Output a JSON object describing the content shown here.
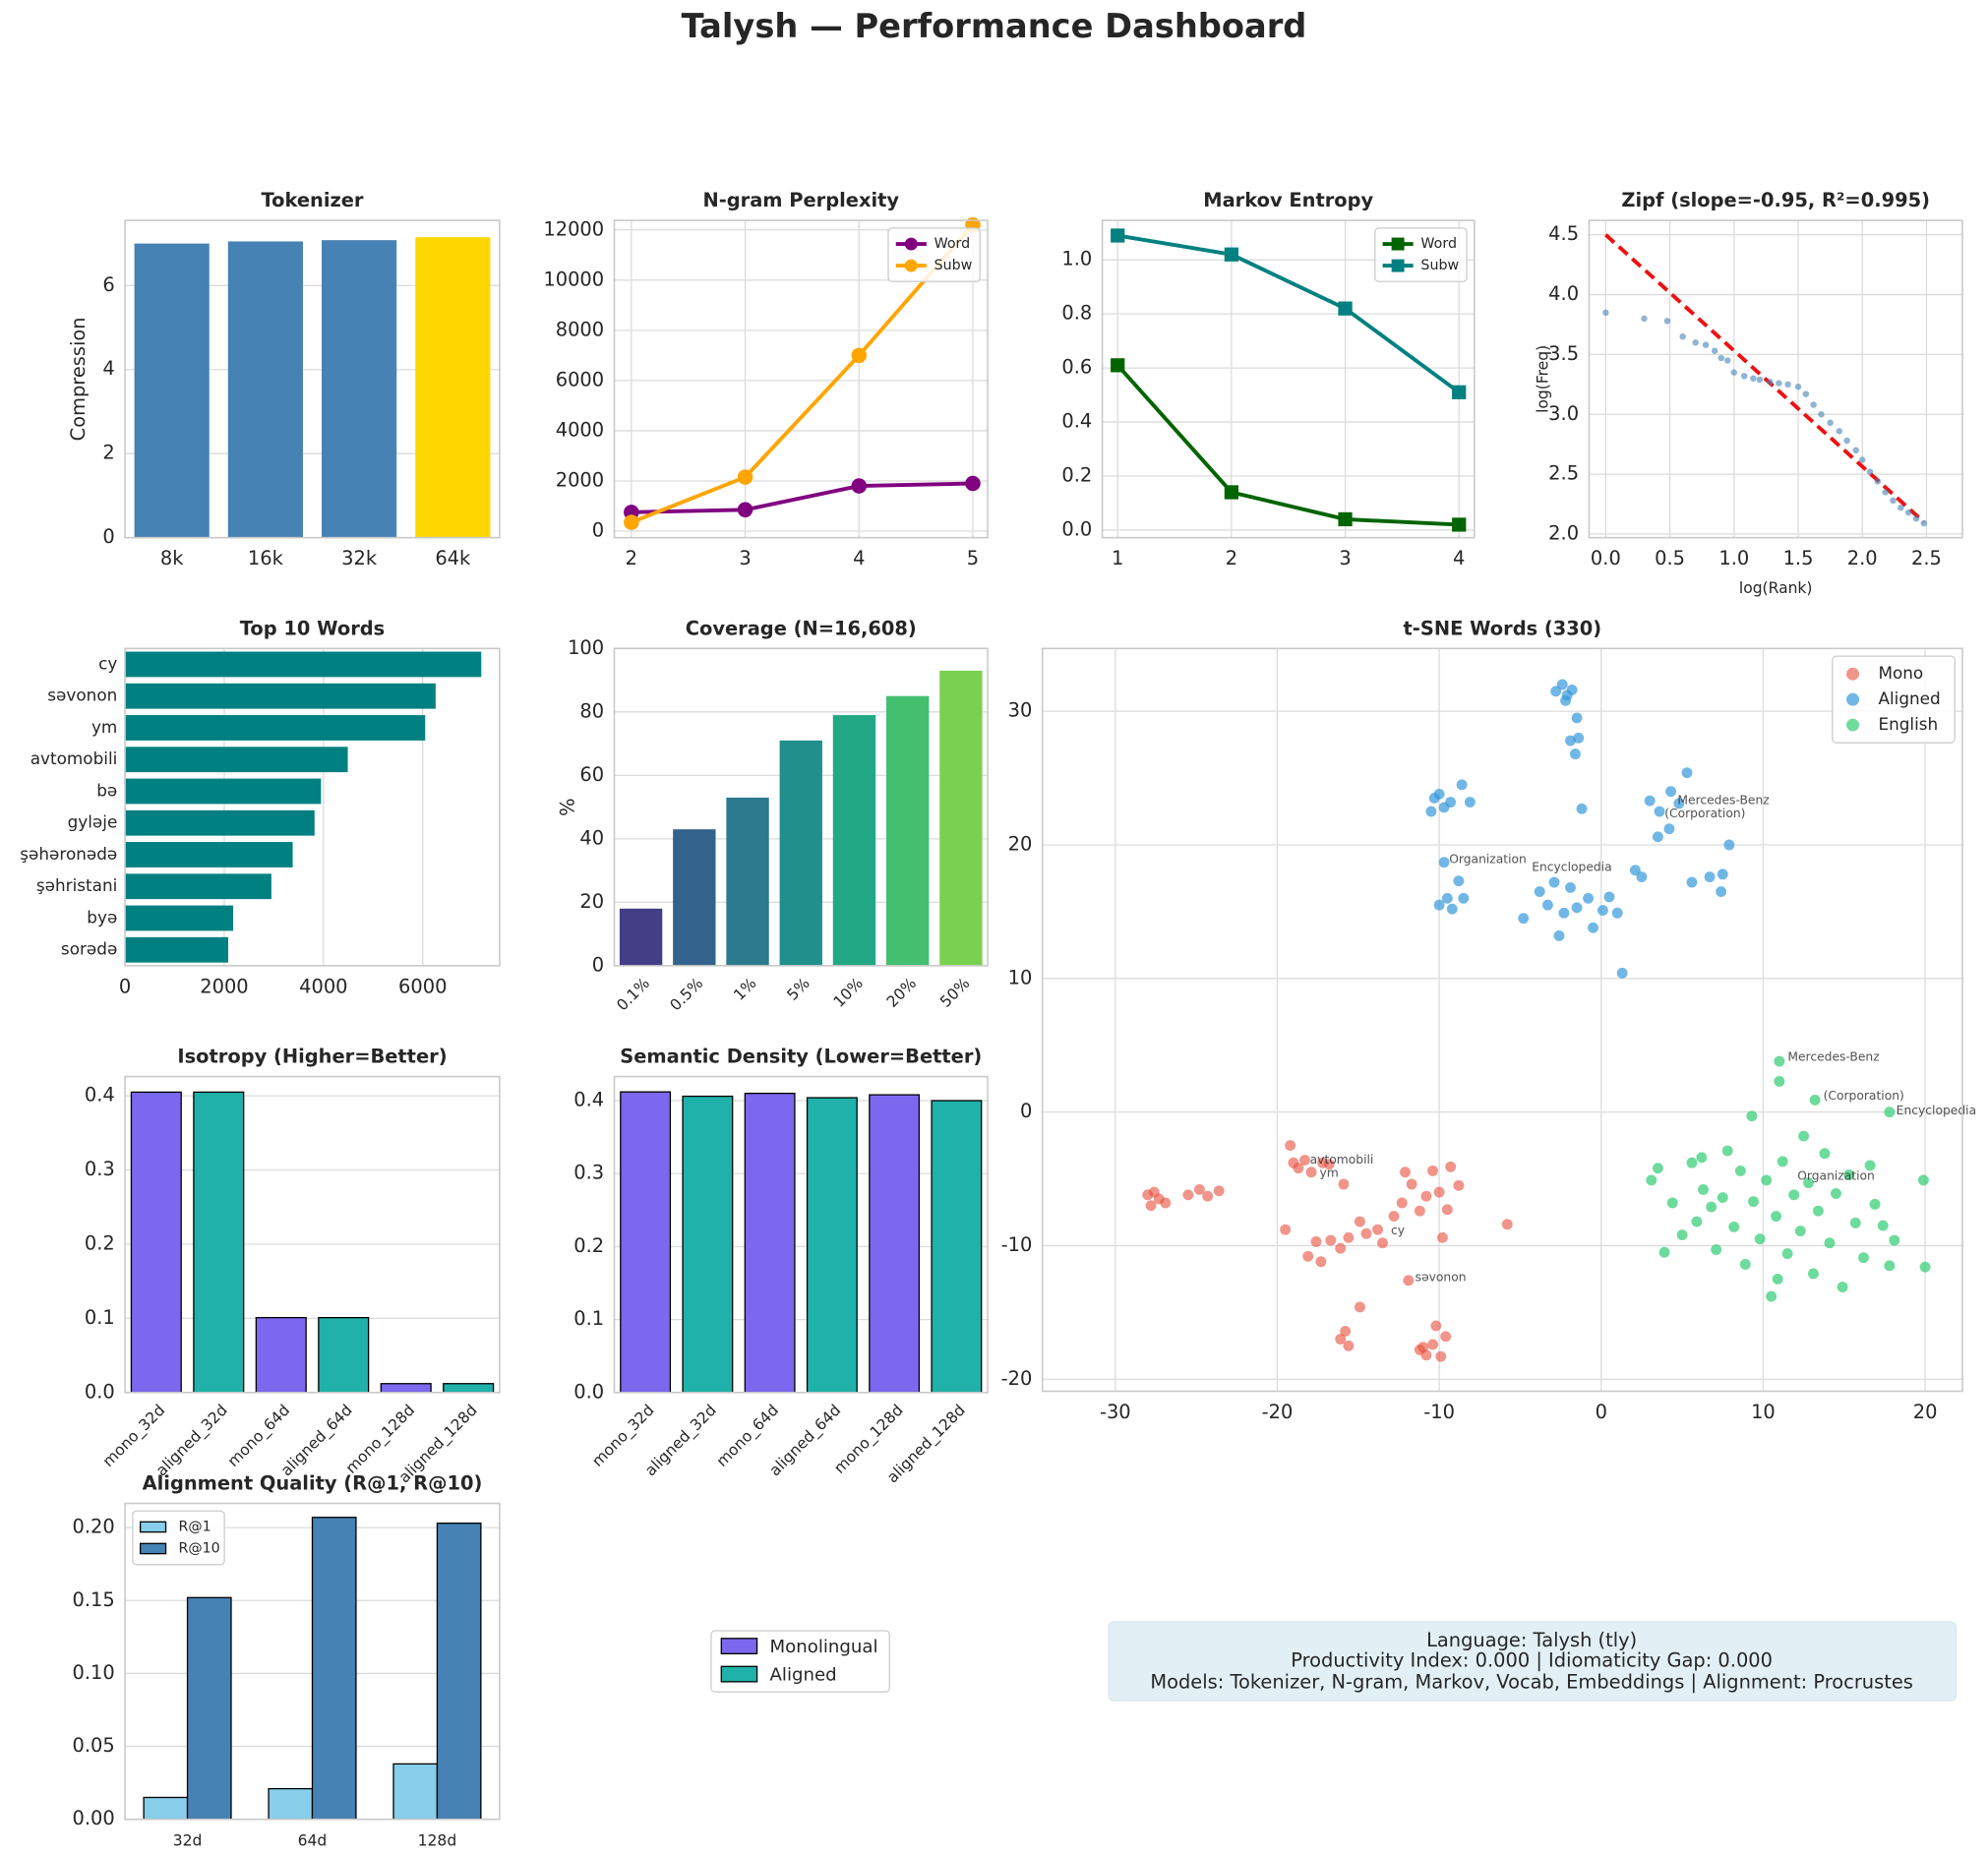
{
  "title": "Talysh — Performance Dashboard",
  "chart_data": [
    {
      "type": "bar",
      "title": "Tokenizer",
      "ylabel": "Compression",
      "categories": [
        "8k",
        "16k",
        "32k",
        "64k"
      ],
      "values": [
        7.0,
        7.05,
        7.08,
        7.15
      ],
      "colors": [
        "#4682b4",
        "#4682b4",
        "#4682b4",
        "#ffd700"
      ],
      "ylim": [
        0,
        7.55
      ],
      "yticks": [
        0,
        2,
        4,
        6
      ],
      "grid": true
    },
    {
      "type": "line",
      "title": "N-gram Perplexity",
      "x": [
        2,
        3,
        4,
        5
      ],
      "series": [
        {
          "name": "Word",
          "color": "#800080",
          "marker": "o",
          "values": [
            750,
            850,
            1800,
            1900
          ]
        },
        {
          "name": "Subw",
          "color": "#ffa500",
          "marker": "o",
          "values": [
            350,
            2150,
            7000,
            12200
          ]
        }
      ],
      "xlim": [
        1.85,
        5.13
      ],
      "xticks": [
        2,
        3,
        4,
        5
      ],
      "ylim": [
        -260,
        12380
      ],
      "yticks": [
        0,
        2000,
        4000,
        6000,
        8000,
        10000,
        12000
      ],
      "legend": "upper right",
      "grid": true
    },
    {
      "type": "line",
      "title": "Markov Entropy",
      "x": [
        1,
        2,
        3,
        4
      ],
      "series": [
        {
          "name": "Word",
          "color": "#006400",
          "marker": "s",
          "values": [
            0.61,
            0.14,
            0.04,
            0.02
          ]
        },
        {
          "name": "Subw",
          "color": "#008080",
          "marker": "s",
          "values": [
            1.09,
            1.02,
            0.82,
            0.51
          ]
        }
      ],
      "xlim": [
        0.865,
        4.135
      ],
      "xticks": [
        1,
        2,
        3,
        4
      ],
      "ylim": [
        -0.028,
        1.146
      ],
      "yticks": [
        {
          "value": 0,
          "label": "0.0"
        },
        0.2,
        0.4,
        0.6,
        0.8,
        {
          "value": 1,
          "label": "1.0"
        }
      ],
      "legend": "upper right",
      "grid": true
    },
    {
      "type": "scatter",
      "title": "Zipf (slope=-0.95, R²=0.995)",
      "xlabel": "log(Rank)",
      "ylabel": "log(Freq)",
      "series": [
        {
          "color": "#4682b4",
          "alpha": 0.6,
          "x": [
            0,
            0.3,
            0.48,
            0.6,
            0.7,
            0.78,
            0.85,
            0.9,
            0.95,
            1.0,
            1.08,
            1.15,
            1.2,
            1.28,
            1.35,
            1.42,
            1.5,
            1.56,
            1.62,
            1.68,
            1.75,
            1.82,
            1.88,
            1.95,
            2.0,
            2.06,
            2.12,
            2.18,
            2.24,
            2.3,
            2.36,
            2.42,
            2.48
          ],
          "y": [
            3.85,
            3.8,
            3.78,
            3.65,
            3.6,
            3.58,
            3.53,
            3.47,
            3.45,
            3.35,
            3.32,
            3.3,
            3.29,
            3.27,
            3.26,
            3.25,
            3.23,
            3.17,
            3.08,
            3.0,
            2.93,
            2.86,
            2.78,
            2.7,
            2.62,
            2.52,
            2.44,
            2.35,
            2.28,
            2.22,
            2.18,
            2.13,
            2.09
          ]
        }
      ],
      "fit_line": {
        "x": [
          0,
          2.48
        ],
        "y": [
          4.5,
          2.1
        ],
        "color": "#ee1111"
      },
      "xlim": [
        -0.13,
        2.78
      ],
      "xticks": [
        {
          "value": 0,
          "label": "0.0"
        },
        0.5,
        {
          "value": 1,
          "label": "1.0"
        },
        1.5,
        {
          "value": 2,
          "label": "2.0"
        },
        2.5
      ],
      "ylim": [
        1.97,
        4.62
      ],
      "yticks": [
        {
          "value": 2,
          "label": "2.0"
        },
        2.5,
        {
          "value": 3,
          "label": "3.0"
        },
        3.5,
        {
          "value": 4,
          "label": "4.0"
        },
        4.5
      ],
      "grid": true
    },
    {
      "type": "barh",
      "title": "Top 10 Words",
      "categories": [
        "cy",
        "səvonon",
        "ym",
        "avtomobili",
        "bə",
        "gyləje",
        "şəhəronədə",
        "şəhristani",
        "byə",
        "sorədə"
      ],
      "values": [
        7180,
        6260,
        6050,
        4490,
        3950,
        3820,
        3380,
        2950,
        2180,
        2080
      ],
      "color": "#008080",
      "xlim": [
        0,
        7550
      ],
      "xticks": [
        0,
        2000,
        4000,
        6000
      ],
      "grid": true
    },
    {
      "type": "bar",
      "title": "Coverage (N=16,608)",
      "ylabel": "%",
      "categories": [
        "0.1%",
        "0.5%",
        "1%",
        "5%",
        "10%",
        "20%",
        "50%"
      ],
      "values": [
        18,
        43,
        53,
        71,
        79,
        85,
        93
      ],
      "colors": [
        "#433e85",
        "#33638d",
        "#2c7a8e",
        "#21908d",
        "#22a884",
        "#44bf70",
        "#7ad151"
      ],
      "ylim": [
        0,
        100
      ],
      "yticks": [
        0,
        20,
        40,
        60,
        80,
        100
      ],
      "xtick_rotation": 45,
      "grid": true
    },
    {
      "type": "scatter",
      "title": "t-SNE Words (330)",
      "series": [
        {
          "name": "Mono",
          "color": "#e74c3c",
          "alpha": 0.6,
          "x": [
            -28,
            -27.8,
            -27.3,
            -26.9,
            -27.6,
            -25.5,
            -24.8,
            -24.3,
            -23.6,
            -19.2,
            -19,
            -18.7,
            -18.3,
            -17.9,
            -17.2,
            -16.8,
            -15.9,
            -19.5,
            -18.1,
            -17.6,
            -17.3,
            -16.7,
            -16.1,
            -15.6,
            -14.9,
            -14.5,
            -13.8,
            -13.5,
            -12.8,
            -12.3,
            -12.1,
            -11.7,
            -11.2,
            -10.8,
            -10.4,
            -10,
            -9.8,
            -9.5,
            -9.3,
            -8.8,
            -5.8,
            -11.9,
            -14.9,
            -16.1,
            -15.6,
            -15.8,
            -11.2,
            -10.8,
            -10.4,
            -9.9,
            -9.6,
            -10.2,
            -11
          ],
          "y": [
            -6.2,
            -7,
            -6.5,
            -6.8,
            -6,
            -6.2,
            -5.8,
            -6.3,
            -5.9,
            -2.5,
            -3.8,
            -4.2,
            -3.6,
            -4.5,
            -3.8,
            -3.9,
            -5.4,
            -8.8,
            -10.8,
            -9.7,
            -11.2,
            -9.6,
            -10.2,
            -9.4,
            -8.2,
            -9.1,
            -8.8,
            -9.8,
            -7.8,
            -6.8,
            -4.5,
            -5.4,
            -7.4,
            -6.3,
            -4.4,
            -6,
            -9.4,
            -7.3,
            -4.1,
            -5.5,
            -8.4,
            -12.6,
            -14.6,
            -17,
            -17.5,
            -16.4,
            -17.8,
            -18.2,
            -17.4,
            -18.3,
            -16.8,
            -16,
            -17.6
          ]
        },
        {
          "name": "Aligned",
          "color": "#3498db",
          "alpha": 0.7,
          "x": [
            -2.8,
            -2.4,
            -2.1,
            -1.8,
            -2.2,
            -1.5,
            -1.9,
            -1.4,
            -1.6,
            -10.3,
            -10,
            -9.7,
            -9.3,
            -8.6,
            -8.1,
            -10.5,
            -10,
            -9.5,
            -9.2,
            -9.7,
            -8.8,
            -8.5,
            -4.8,
            -3.8,
            -3.3,
            -2.9,
            -2.6,
            -2.3,
            -1.9,
            -1.5,
            -0.8,
            -0.5,
            0.1,
            0.5,
            1,
            1.3,
            2.1,
            -1.2,
            3,
            3.6,
            4.3,
            4.8,
            5.3,
            3.5,
            4.2,
            5.6,
            6.7,
            7.4,
            7.9,
            7.5,
            2.5
          ],
          "y": [
            31.5,
            32,
            31.2,
            31.6,
            30.8,
            29.5,
            27.8,
            28,
            26.8,
            23.5,
            23.8,
            22.8,
            23.2,
            24.5,
            23.2,
            22.5,
            15.5,
            16,
            15.2,
            18.7,
            17.3,
            16,
            14.5,
            16.5,
            15.5,
            17.2,
            13.2,
            14.9,
            16.8,
            15.3,
            16,
            13.8,
            15.1,
            16.1,
            14.9,
            10.4,
            18.1,
            22.7,
            23.3,
            22.5,
            24,
            23.1,
            25.4,
            20.6,
            21.2,
            17.2,
            17.6,
            16.5,
            20,
            17.8,
            17.6
          ]
        },
        {
          "name": "English",
          "color": "#2ecc71",
          "alpha": 0.7,
          "x": [
            11,
            11,
            13.2,
            17.8,
            3.1,
            3.5,
            4.4,
            5,
            5.6,
            5.9,
            6.3,
            6.8,
            7.1,
            7.5,
            7.8,
            8.2,
            8.6,
            8.9,
            9.3,
            9.4,
            9.8,
            10.2,
            10.5,
            10.8,
            11.2,
            11.5,
            11.9,
            12.3,
            12.5,
            12.8,
            13.1,
            13.4,
            13.8,
            14.1,
            14.5,
            14.9,
            15.3,
            15.7,
            16.2,
            16.6,
            16.9,
            17.4,
            17.8,
            18.1,
            19.9,
            20,
            6.2,
            10.9,
            3.9
          ],
          "y": [
            3.8,
            2.3,
            0.9,
            0,
            -5.1,
            -4.2,
            -6.8,
            -9.2,
            -3.8,
            -8.2,
            -5.8,
            -7.1,
            -10.3,
            -6.4,
            -2.9,
            -8.6,
            -4.4,
            -11.4,
            -0.3,
            -6.7,
            -9.5,
            -5.1,
            -13.8,
            -7.8,
            -3.7,
            -10.6,
            -6.2,
            -8.9,
            -1.8,
            -5.3,
            -12.1,
            -7.4,
            -3.1,
            -9.8,
            -6.1,
            -13.1,
            -4.7,
            -8.3,
            -10.9,
            -4,
            -6.9,
            -8.5,
            -11.5,
            -9.6,
            -5.1,
            -11.6,
            -3.4,
            -12.5,
            -10.5
          ]
        }
      ],
      "annotations": [
        {
          "text": "Mercedes-Benz",
          "x": 11.2,
          "y": 4.1,
          "color": "#2ecc71"
        },
        {
          "text": "(Corporation)",
          "x": 13.4,
          "y": 1.2,
          "color": "#2ecc71"
        },
        {
          "text": "Encyclopedia",
          "x": 17.9,
          "y": 0.1,
          "color": "#2ecc71"
        },
        {
          "text": "Organization",
          "x": 11.8,
          "y": -4.8,
          "color": "#2ecc71"
        },
        {
          "text": "Mercedes-Benz",
          "x": 4.4,
          "y": 23.3,
          "color": "#3498db"
        },
        {
          "text": "(Corporation)",
          "x": 3.6,
          "y": 22.3,
          "color": "#3498db"
        },
        {
          "text": "Organization",
          "x": -9.7,
          "y": 18.9,
          "color": "#3498db"
        },
        {
          "text": "Encyclopedia",
          "x": -4.6,
          "y": 18.3,
          "color": "#3498db"
        },
        {
          "text": "avtomobili",
          "x": -18.3,
          "y": -3.6,
          "color": "#e74c3c"
        },
        {
          "text": "ym",
          "x": -17.7,
          "y": -4.6,
          "color": "#e74c3c"
        },
        {
          "text": "cy",
          "x": -13.3,
          "y": -8.9,
          "color": "#e74c3c"
        },
        {
          "text": "səvonon",
          "x": -11.8,
          "y": -12.4,
          "color": "#e74c3c"
        }
      ],
      "xlim": [
        -34.5,
        22.3
      ],
      "xticks": [
        -30,
        -20,
        -10,
        0,
        10,
        20
      ],
      "ylim": [
        -20.9,
        34.7
      ],
      "yticks": [
        -20,
        -10,
        0,
        10,
        20,
        30
      ],
      "legend": "upper right",
      "grid": true
    },
    {
      "type": "bar",
      "title": "Isotropy (Higher=Better)",
      "categories": [
        "mono_32d",
        "aligned_32d",
        "mono_64d",
        "aligned_64d",
        "mono_128d",
        "aligned_128d"
      ],
      "values": [
        0.405,
        0.405,
        0.101,
        0.101,
        0.012,
        0.012
      ],
      "colors": [
        "#7b68ee",
        "#20b2aa",
        "#7b68ee",
        "#20b2aa",
        "#7b68ee",
        "#20b2aa"
      ],
      "edgecolor": "#000000",
      "ylim": [
        0,
        0.426
      ],
      "yticks": [
        {
          "value": 0,
          "label": "0.0"
        },
        0.1,
        0.2,
        0.3,
        0.4
      ],
      "xtick_rotation": 45,
      "grid": true
    },
    {
      "type": "bar",
      "title": "Semantic Density (Lower=Better)",
      "categories": [
        "mono_32d",
        "aligned_32d",
        "mono_64d",
        "aligned_64d",
        "mono_128d",
        "aligned_128d"
      ],
      "values": [
        0.412,
        0.406,
        0.41,
        0.404,
        0.408,
        0.4
      ],
      "colors": [
        "#7b68ee",
        "#20b2aa",
        "#7b68ee",
        "#20b2aa",
        "#7b68ee",
        "#20b2aa"
      ],
      "edgecolor": "#000000",
      "ylim": [
        0,
        0.433
      ],
      "yticks": [
        {
          "value": 0,
          "label": "0.0"
        },
        0.1,
        0.2,
        0.3,
        0.4
      ],
      "xtick_rotation": 45,
      "grid": true
    },
    {
      "type": "bar",
      "title": "Alignment Quality (R@1, R@10)",
      "categories": [
        "32d",
        "64d",
        "128d"
      ],
      "series": [
        {
          "name": "R@1",
          "color": "#87ceeb",
          "values": [
            0.015,
            0.021,
            0.038
          ]
        },
        {
          "name": "R@10",
          "color": "#4682b4",
          "values": [
            0.152,
            0.207,
            0.203
          ]
        }
      ],
      "edgecolor": "#000000",
      "ylim": [
        0,
        0.2166
      ],
      "yticks": [
        {
          "value": 0,
          "label": "0.00"
        },
        0.05,
        {
          "value": 0.1,
          "label": "0.10"
        },
        0.15,
        {
          "value": 0.2,
          "label": "0.20"
        }
      ],
      "legend": "upper left",
      "grid": true
    }
  ],
  "legend": {
    "series": [
      {
        "name": "Monolingual",
        "color": "#7b68ee"
      },
      {
        "name": "Aligned",
        "color": "#20b2aa"
      }
    ]
  },
  "info_box": {
    "lines": [
      "Language: Talysh (tly)",
      "Productivity Index: 0.000  |  Idiomaticity Gap: 0.000",
      "Models: Tokenizer, N-gram, Markov, Vocab, Embeddings  |  Alignment: Procrustes"
    ]
  }
}
